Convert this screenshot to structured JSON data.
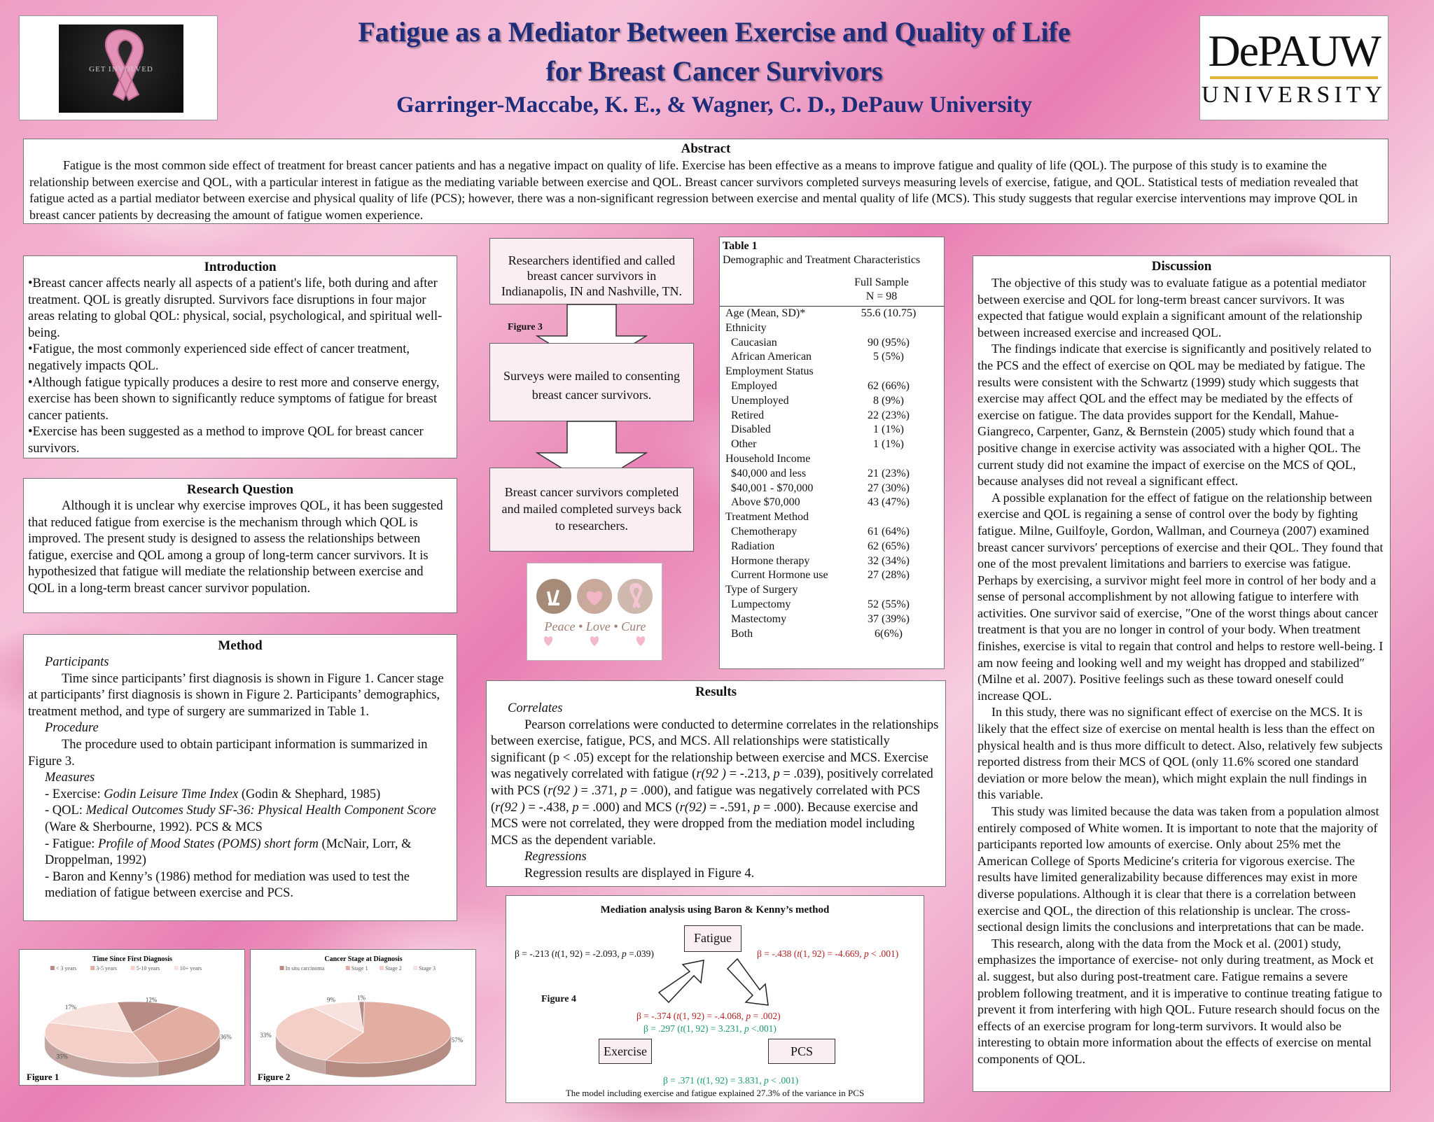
{
  "header": {
    "title_line1": "Fatigue as a Mediator Between Exercise and Quality of Life",
    "title_line2": "for Breast Cancer Survivors",
    "authors": "Garringer-Maccabe, K. E., & Wagner, C. D., DePauw University",
    "left_logo_text": "Get Involved",
    "right_logo_line1": "DePAUW",
    "right_logo_line2": "UNIVERSITY"
  },
  "abstract": {
    "heading": "Abstract",
    "body": "Fatigue is the most common side effect of treatment for breast cancer patients and has a negative impact on quality of life.  Exercise has been effective as a means to improve fatigue and quality of life (QOL).  The purpose of this study is to examine the relationship between exercise and QOL, with a particular interest in fatigue as the mediating variable between exercise and QOL.  Breast cancer survivors completed surveys measuring levels of exercise, fatigue, and QOL.  Statistical tests of mediation revealed that fatigue acted as a partial mediator between exercise and physical quality of life (PCS); however, there was a non-significant regression between exercise and mental quality of life (MCS).  This study suggests that regular exercise interventions may improve QOL in breast cancer patients by decreasing the amount of fatigue women experience."
  },
  "introduction": {
    "heading": "Introduction",
    "bullets": [
      "•Breast cancer affects nearly all aspects of a patient's life, both during and after treatment.  QOL is greatly disrupted.  Survivors face disruptions in four major areas relating to global QOL: physical, social, psychological, and spiritual well-being.",
      "•Fatigue, the most commonly experienced side effect of cancer treatment, negatively impacts QOL.",
      "•Although fatigue typically produces a desire to rest more and conserve energy, exercise has been shown to significantly reduce symptoms of fatigue for breast cancer patients.",
      "•Exercise has been suggested as a method to improve QOL for breast cancer survivors."
    ]
  },
  "research_question": {
    "heading": "Research Question",
    "body": "Although it is unclear why exercise improves QOL, it has been suggested that reduced fatigue from exercise is the mechanism through which QOL is improved.  The present study is designed to assess the relationships between fatigue, exercise and QOL among a group of long-term cancer survivors.  It is hypothesized that fatigue will mediate the relationship between exercise and QOL in a long-term breast cancer survivor population."
  },
  "method": {
    "heading": "Method",
    "participants_label": "Participants",
    "participants_text": "Time since participants’ first diagnosis is shown in Figure 1.  Cancer stage at participants’ first diagnosis is shown in Figure 2.  Participants’ demographics, treatment method, and type of surgery are summarized in Table 1.",
    "procedure_label": "Procedure",
    "procedure_text": "The procedure used to obtain participant information is summarized in Figure 3.",
    "measures_label": "Measures",
    "m1_prefix": "- Exercise: ",
    "m1_italic": "Godin Leisure Time Index",
    "m1_suffix": " (Godin & Shephard, 1985)",
    "m2_prefix": "- QOL: ",
    "m2_italic": "Medical Outcomes Study SF-36: Physical Health Component Score",
    "m2_suffix": " (Ware & Sherbourne, 1992).  PCS & MCS",
    "m3_prefix": "- Fatigue: ",
    "m3_italic": "Profile of Mood States (POMS) short form",
    "m3_suffix": " (McNair, Lorr, & Droppelman, 1992)",
    "m4": "- Baron and Kenny’s (1986) method for mediation was used to test the mediation of fatigue between exercise and PCS."
  },
  "figure3": {
    "step1": "Researchers identified and called breast cancer survivors in Indianapolis, IN and Nashville, TN.",
    "label": "Figure 3",
    "step2": "Surveys were mailed to consenting breast cancer survivors.",
    "step3": "Breast cancer survivors completed and mailed completed surveys back to researchers."
  },
  "peace_image": {
    "caption": "Peace • Love • Cure"
  },
  "table1": {
    "title": "Table 1",
    "subtitle": "Demographic and Treatment Characteristics",
    "col_header_1": "Full Sample",
    "col_header_2": "N = 98",
    "rows": [
      {
        "label": "Age (Mean, SD)*",
        "value": "55.6 (10.75)",
        "indent": false
      },
      {
        "label": "Ethnicity",
        "value": "",
        "indent": false
      },
      {
        "label": "Caucasian",
        "value": "90 (95%)",
        "indent": true
      },
      {
        "label": "African American",
        "value": "5 (5%)",
        "indent": true
      },
      {
        "label": "Employment Status",
        "value": "",
        "indent": false
      },
      {
        "label": "Employed",
        "value": "62 (66%)",
        "indent": true
      },
      {
        "label": "Unemployed",
        "value": "8 (9%)",
        "indent": true
      },
      {
        "label": "Retired",
        "value": "22 (23%)",
        "indent": true
      },
      {
        "label": "Disabled",
        "value": "1 (1%)",
        "indent": true
      },
      {
        "label": "Other",
        "value": "1 (1%)",
        "indent": true
      },
      {
        "label": "Household Income",
        "value": "",
        "indent": false
      },
      {
        "label": "$40,000 and less",
        "value": "21 (23%)",
        "indent": true
      },
      {
        "label": "$40,001 - $70,000",
        "value": "27 (30%)",
        "indent": true
      },
      {
        "label": "Above $70,000",
        "value": "43 (47%)",
        "indent": true
      },
      {
        "label": "Treatment Method",
        "value": "",
        "indent": false
      },
      {
        "label": "Chemotherapy",
        "value": "61 (64%)",
        "indent": true
      },
      {
        "label": "Radiation",
        "value": "62 (65%)",
        "indent": true
      },
      {
        "label": "Hormone therapy",
        "value": "32 (34%)",
        "indent": true
      },
      {
        "label": "Current Hormone use",
        "value": "27 (28%)",
        "indent": true
      },
      {
        "label": "Type of Surgery",
        "value": "",
        "indent": false
      },
      {
        "label": "Lumpectomy",
        "value": "52 (55%)",
        "indent": true
      },
      {
        "label": "Mastectomy",
        "value": "37 (39%)",
        "indent": true
      },
      {
        "label": "Both",
        "value": "6(6%)",
        "indent": true
      }
    ]
  },
  "results": {
    "heading": "Results",
    "correlates_label": "Correlates",
    "correlates_html": "Pearson correlations were conducted to determine correlates in the relationships between exercise, fatigue, PCS, and MCS.  All relationships were statistically significant (p &lt; .05) except for the relationship between exercise and MCS.  Exercise was negatively correlated with fatigue (<i>r(92 )</i> = -.213, <i>p</i> = .039), positively correlated with PCS (<i>r(92 )</i> = .371, <i>p</i> = .000), and fatigue was negatively correlated with PCS  (<i>r(92 )</i> = -.438, <i>p</i> = .000) and MCS (<i>r(92)</i> = -.591, <i>p</i> = .000).  Because exercise and MCS were not correlated, they were dropped from the mediation model including MCS as the dependent variable.",
    "regressions_label": "Regressions",
    "regressions_text": "Regression results are displayed in Figure 4."
  },
  "figure4": {
    "title": "Mediation analysis using Baron & Kenny’s method",
    "label": "Figure 4",
    "node_fatigue": "Fatigue",
    "node_exercise": "Exercise",
    "node_pcs": "PCS",
    "path_a": "β = -.213 (<i>t</i>(1, 92) = -2.093, <i>p</i> =.039)",
    "path_b": "β = -.438 (<i>t</i>(1, 92) = -4.669, <i>p</i> &lt; .001)",
    "path_fatigue_in_model": "β = -.374 (<i>t</i>(1, 92) = -.4.068, <i>p</i> = .002)",
    "path_exercise_in_model": "β = .297 (<i>t</i>(1, 92) = 3.231, <i>p</i> &lt;.001)",
    "path_c": "β = .371 (<i>t</i>(1, 92) = 3.831, <i>p</i> &lt; .001)",
    "caption": "The model including exercise and fatigue explained 27.3% of the variance in PCS",
    "colors": {
      "red": "#b22222",
      "green": "#1a9a70"
    }
  },
  "discussion": {
    "heading": "Discussion",
    "paragraphs": [
      "The objective of this study was to evaluate fatigue as a potential mediator between exercise and QOL for long-term breast cancer survivors.  It was expected that fatigue would explain a significant amount of the relationship between increased exercise and increased QOL.",
      "The findings indicate that exercise is significantly and positively related to the PCS and the effect of exercise on QOL may be mediated by fatigue.  The results were consistent with the Schwartz (1999) study which suggests that exercise may affect QOL and the effect may be mediated by the effects of exercise on fatigue.  The data provides support for the Kendall, Mahue-Giangreco, Carpenter, Ganz, & Bernstein (2005) study which found that a positive change in exercise activity was associated with a higher QOL.  The current study did not examine the impact of exercise on the MCS of  QOL, because analyses did not reveal a significant effect.",
      "A possible explanation for the effect of fatigue on the relationship between exercise and QOL is regaining a sense of control over the body by fighting fatigue.  Milne, Guilfoyle, Gordon, Wallman, and Courneya (2007) examined breast cancer survivors′ perceptions of exercise and their QOL.  They found that one of the most prevalent limitations and barriers to exercise was fatigue.  Perhaps by exercising, a survivor might feel more in control of her body and a sense of personal accomplishment by not allowing fatigue to interfere with activities.  One survivor said of exercise, ″One of the worst things about cancer treatment is that you are no longer in control of your body.  When treatment finishes, exercise is vital to regain that control and helps to restore well-being.  I am now feeing and looking well and my weight has dropped and stabilized″ (Milne et al. 2007).  Positive feelings such as these toward oneself could increase QOL.",
      "In this study, there was no significant effect of exercise on the MCS.  It is likely that the effect size of exercise on mental health is less than the effect on physical health and is thus more difficult to detect.  Also, relatively few subjects reported distress from their MCS of QOL (only 11.6% scored one standard deviation or more below the mean), which might explain the null findings in this variable.",
      "This study was limited because the data was taken from a population almost entirely composed of White women.  It is important to note that the majority of participants reported low amounts of exercise.  Only about 25% met the American College of Sports Medicine′s criteria for vigorous exercise.  The results have limited generalizability because differences may exist in more diverse populations.  Although it is clear that there is a correlation between exercise and QOL, the direction of this relationship is unclear.  The cross-sectional design limits the conclusions and interpretations that can be made.",
      "This research, along with the data from the Mock et al. (2001) study, emphasizes the importance of exercise- not only during treatment, as Mock et al. suggest, but also during post-treatment care.  Fatigue remains a severe problem following treatment, and it is imperative to continue treating fatigue to prevent it from interfering with high QOL.  Future research should focus on the effects of an exercise program for long-term survivors.  It would also be interesting to obtain more information about the effects of exercise on mental components of QOL."
    ]
  },
  "chart_data": [
    {
      "type": "pie",
      "title": "Time Since First Diagnosis",
      "figure_label": "Figure 1",
      "categories": [
        "< 3 years",
        "3-5 years",
        "5-10 years",
        "10+ years"
      ],
      "values": [
        12,
        36,
        35,
        17
      ],
      "labels": [
        "12%",
        "36%",
        "35%",
        "17%"
      ],
      "colors": [
        "#b88b84",
        "#e3aea2",
        "#f3cfc7",
        "#f8e2dd"
      ],
      "legend_position": "top"
    },
    {
      "type": "pie",
      "title": "Cancer Stage at Diagnosis",
      "figure_label": "Figure 2",
      "categories": [
        "In situ carcinoma",
        "Stage 1",
        "Stage 2",
        "Stage 3"
      ],
      "values": [
        1,
        57,
        33,
        9
      ],
      "labels": [
        "1%",
        "57%",
        "33%",
        "9%"
      ],
      "colors": [
        "#b88b84",
        "#e3aea2",
        "#f3cfc7",
        "#f8e2dd"
      ],
      "legend_position": "top"
    }
  ]
}
